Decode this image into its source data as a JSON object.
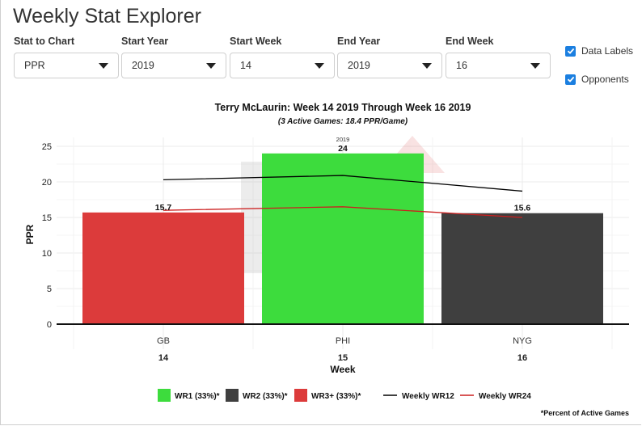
{
  "app": {
    "title": "Weekly Stat Explorer"
  },
  "controls": [
    {
      "label": "Stat to Chart",
      "value": "PPR"
    },
    {
      "label": "Start Year",
      "value": "2019"
    },
    {
      "label": "Start Week",
      "value": "14"
    },
    {
      "label": "End Year",
      "value": "2019"
    },
    {
      "label": "End Week",
      "value": "16"
    }
  ],
  "checkboxes": [
    {
      "label": "Data Labels",
      "checked": true
    },
    {
      "label": "Opponents",
      "checked": true
    }
  ],
  "chart_data": {
    "type": "bar",
    "title": "Terry McLaurin: Week 14 2019 Through Week 16 2019",
    "subtitle": "(3 Active Games: 18.4 PPR/Game)",
    "xlabel": "Week",
    "ylabel": "PPR",
    "ylim": [
      0,
      25
    ],
    "yticks": [
      0,
      5,
      10,
      15,
      20,
      25
    ],
    "grid": true,
    "categories": [
      "14",
      "15",
      "16"
    ],
    "opponents": [
      "GB",
      "PHI",
      "NYG"
    ],
    "bar_annotations": [
      "",
      "2019",
      ""
    ],
    "values": [
      15.7,
      24,
      15.6
    ],
    "data_labels": [
      "15.7",
      "24",
      "15.6"
    ],
    "bar_groups": [
      "WR3+",
      "WR1",
      "WR2"
    ],
    "lines": [
      {
        "name": "Weekly WR12",
        "color": "#000000",
        "values": [
          20.3,
          20.9,
          18.7
        ]
      },
      {
        "name": "Weekly WR24",
        "color": "#cc1f1f",
        "values": [
          16.0,
          16.5,
          15.0
        ]
      }
    ],
    "legend": {
      "position": "bottom",
      "bar_entries": [
        {
          "label": "WR1 (33%)*",
          "color": "#3ddc3d"
        },
        {
          "label": "WR2 (33%)*",
          "color": "#3f3f3f"
        },
        {
          "label": "WR3+ (33%)*",
          "color": "#dc3b3b"
        }
      ],
      "line_entries": [
        {
          "label": "Weekly WR12",
          "color": "#000000"
        },
        {
          "label": "Weekly WR24",
          "color": "#cc1f1f"
        }
      ]
    },
    "footnote": "*Percent of Active Games"
  },
  "colors": {
    "accent": "#1b7fe0",
    "WR1": "#3ddc3d",
    "WR2": "#3f3f3f",
    "WR3+": "#dc3b3b"
  }
}
